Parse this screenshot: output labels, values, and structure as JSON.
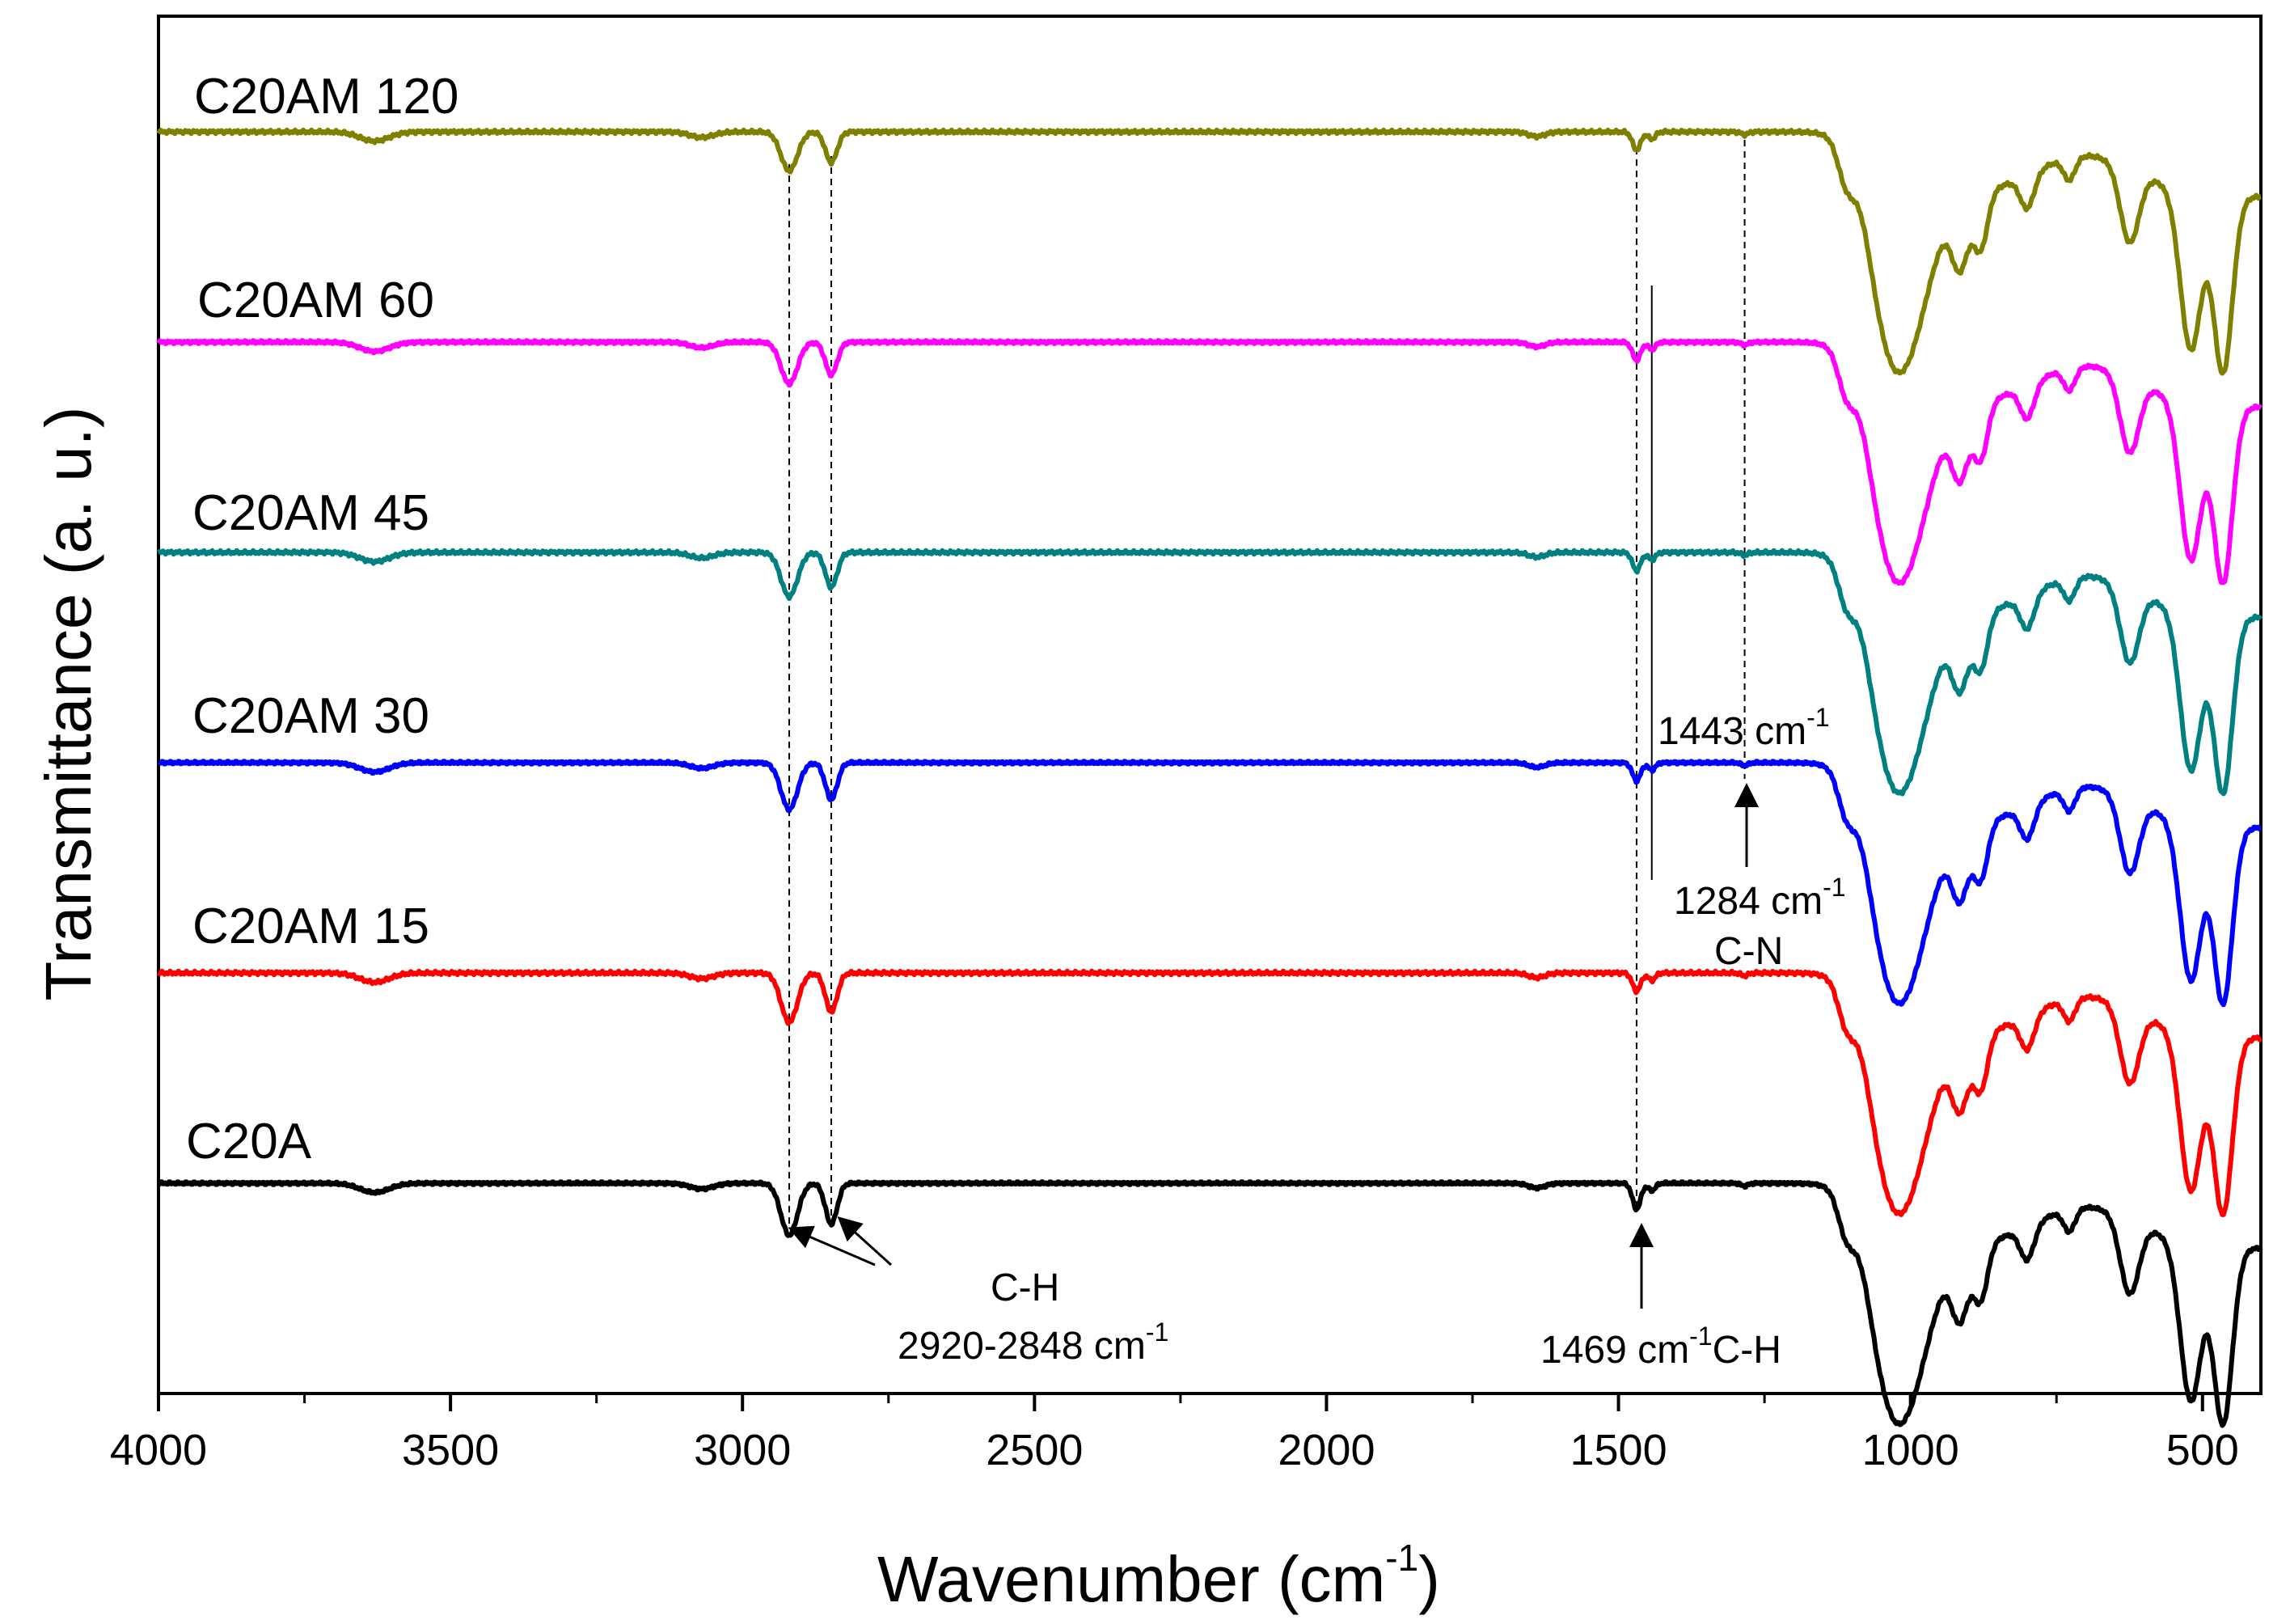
{
  "chart_data": {
    "type": "line",
    "title": "",
    "xlabel": "Wavenumber (cm",
    "xlabel_sup": "-1",
    "xlabel_close": ")",
    "ylabel": "Transmittance (a. u.)",
    "xlim": [
      4000,
      400
    ],
    "x_reversed": true,
    "y_ticks": "none",
    "x_ticks": [
      4000,
      3500,
      3000,
      2500,
      2000,
      1500,
      1000,
      500
    ],
    "x_tick_labels": [
      "4000",
      "3500",
      "3000",
      "2500",
      "2000",
      "1500",
      "1000",
      "500"
    ],
    "x_minor_step": 250,
    "grid": false,
    "legend": "labels placed above each trace",
    "vertical_reference_lines": [
      2920,
      2848,
      1469,
      1443,
      1284
    ],
    "series": [
      {
        "name": "C20AM 120",
        "color": "#808000",
        "offset": 5,
        "variant": 5
      },
      {
        "name": "C20AM 60",
        "color": "#ff00ff",
        "offset": 4,
        "variant": 4
      },
      {
        "name": "C20AM 45",
        "color": "#008080",
        "offset": 3,
        "variant": 3
      },
      {
        "name": "C20AM 30",
        "color": "#0000ff",
        "offset": 2,
        "variant": 2
      },
      {
        "name": "C20AM 15",
        "color": "#ff0000",
        "offset": 1,
        "variant": 1
      },
      {
        "name": "C20A",
        "color": "#000000",
        "offset": 0,
        "variant": 0
      }
    ],
    "spectrum_features": [
      {
        "x": 3630,
        "depth": 0.05,
        "width": 25
      },
      {
        "x": 3070,
        "depth": 0.03,
        "width": 20
      },
      {
        "x": 2920,
        "depth": 0.28,
        "width": 14
      },
      {
        "x": 2848,
        "depth": 0.22,
        "width": 10
      },
      {
        "x": 1640,
        "depth": 0.025,
        "width": 14
      },
      {
        "x": 1469,
        "depth": 0.14,
        "width": 7
      },
      {
        "x": 1443,
        "depth": 0.04,
        "width": 6
      },
      {
        "x": 1284,
        "depth": 0.015,
        "width": 6
      },
      {
        "x": 1110,
        "depth": 0.18,
        "width": 14
      },
      {
        "x": 1020,
        "depth": 0.95,
        "width": 45
      },
      {
        "x": 915,
        "depth": 0.35,
        "width": 14
      },
      {
        "x": 880,
        "depth": 0.3,
        "width": 12
      },
      {
        "x": 800,
        "depth": 0.18,
        "width": 12
      },
      {
        "x": 728,
        "depth": 0.12,
        "width": 10
      },
      {
        "x": 625,
        "depth": 0.4,
        "width": 16
      },
      {
        "x": 520,
        "depth": 0.85,
        "width": 18
      },
      {
        "x": 465,
        "depth": 0.95,
        "width": 16
      }
    ],
    "annotations": [
      {
        "line1": "C-H",
        "line2": "2920-2848 cm",
        "sup": "-1"
      },
      {
        "text": "1469 cm",
        "sup": "-1",
        "after": "C-H"
      },
      {
        "text": "1443 cm",
        "sup": "-1"
      },
      {
        "text": "1284 cm",
        "sup": "-1",
        "line2": "C-N"
      }
    ]
  }
}
